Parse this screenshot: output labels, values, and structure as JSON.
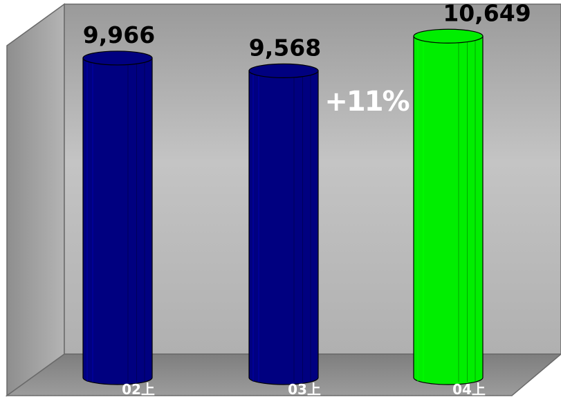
{
  "chart_data": {
    "type": "bar",
    "categories": [
      "02上",
      "03上",
      "04上"
    ],
    "values": [
      9966,
      9568,
      10649
    ],
    "value_labels": [
      "9,966",
      "9,568",
      "10,649"
    ],
    "annotation": "+11%",
    "bar_colors": [
      "#000080",
      "#000080",
      "#00ee00"
    ],
    "ylim": [
      0,
      11000
    ],
    "grid": false,
    "legend": "none"
  },
  "colors": {
    "back_wall": "#b8b8b8",
    "floor": "#8c8c8c",
    "highlight_bar": "#00ee00",
    "base_bar": "#000080"
  }
}
